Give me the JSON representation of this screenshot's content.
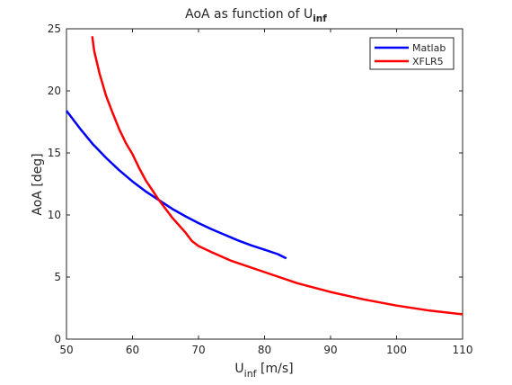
{
  "chart_data": {
    "type": "line",
    "title": "AoA as function of U",
    "title_sub": "inf",
    "xlabel_main": "U",
    "xlabel_sub": "inf",
    "xlabel_unit": " [m/s]",
    "ylabel": "AoA [deg]",
    "xlim": [
      50,
      110
    ],
    "ylim": [
      0,
      25
    ],
    "xticks": [
      50,
      60,
      70,
      80,
      90,
      100,
      110
    ],
    "yticks": [
      0,
      5,
      10,
      15,
      20,
      25
    ],
    "grid": false,
    "legend_position": "top-right",
    "series": [
      {
        "name": "Matlab",
        "color": "#0000ff",
        "x": [
          50,
          52,
          54,
          56,
          58,
          60,
          62,
          64,
          66,
          68,
          70,
          72,
          74,
          76,
          78,
          80,
          82,
          83.3
        ],
        "y": [
          18.4,
          17.0,
          15.7,
          14.6,
          13.6,
          12.7,
          11.9,
          11.2,
          10.5,
          9.9,
          9.35,
          8.85,
          8.4,
          7.95,
          7.55,
          7.2,
          6.85,
          6.5
        ]
      },
      {
        "name": "XFLR5",
        "color": "#ff0000",
        "x": [
          53.9,
          54.2,
          55,
          56,
          57,
          58,
          59,
          60,
          61,
          62,
          63,
          64,
          65,
          66,
          67,
          68,
          69,
          70,
          72,
          75,
          80,
          85,
          90,
          95,
          100,
          105,
          110
        ],
        "y": [
          24.4,
          23.2,
          21.4,
          19.6,
          18.2,
          16.9,
          15.8,
          14.9,
          13.8,
          12.8,
          12.0,
          11.2,
          10.5,
          9.8,
          9.2,
          8.6,
          7.9,
          7.5,
          7.0,
          6.3,
          5.4,
          4.5,
          3.8,
          3.2,
          2.7,
          2.3,
          2.0
        ]
      }
    ]
  }
}
